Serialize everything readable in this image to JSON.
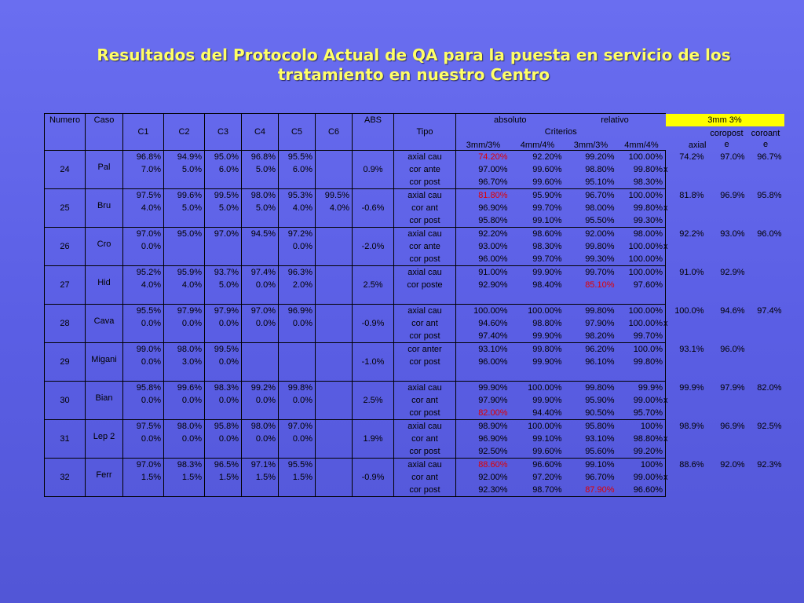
{
  "title": {
    "line1": "Resultados del Protocolo Actual de QA para la puesta en servicio de los",
    "line2": "tratamiento en nuestro Centro"
  },
  "headers": {
    "numero": "Numero",
    "caso": "Caso",
    "c1": "C1",
    "c2": "C2",
    "c3": "C3",
    "c4": "C4",
    "c5": "C5",
    "c6": "C6",
    "abs": "ABS",
    "tipo": "Tipo",
    "absoluto": "absoluto",
    "relativo": "relativo",
    "mm3": "3mm 3%",
    "criterios": "Criterios",
    "abs_3mm": "3mm/3%",
    "abs_4mm": "4mm/4%",
    "rel_3mm": "3mm/3%",
    "rel_4mm": "4mm/4%",
    "axial": "axial",
    "coropost_1": "coropost",
    "coropost_2": "e",
    "coroant_1": "coroant",
    "coroant_2": "e"
  },
  "colors": {
    "background": "#6064e6",
    "title": "#ffff66",
    "highlight": "#ffff00",
    "warning": "#e00000"
  },
  "cases": [
    {
      "numero": "24",
      "caso": "Pal",
      "row1": [
        "96.8%",
        "94.9%",
        "95.0%",
        "96.8%",
        "95.5%",
        ""
      ],
      "row2": [
        "7.0%",
        "5.0%",
        "6.0%",
        "5.0%",
        "6.0%",
        ""
      ],
      "abs": "0.9%",
      "tipos": [
        {
          "t": "axial cau",
          "v": [
            "74.20%",
            "92.20%",
            "99.20%",
            "100.00%"
          ],
          "red": [
            0
          ],
          "x": false
        },
        {
          "t": "cor ante",
          "v": [
            "97.00%",
            "99.60%",
            "98.80%",
            "99.80%"
          ],
          "red": [],
          "x": true
        },
        {
          "t": "cor post",
          "v": [
            "96.70%",
            "99.60%",
            "95.10%",
            "98.30%"
          ],
          "red": [],
          "x": false
        }
      ],
      "mm3": [
        "74.2%",
        "97.0%",
        "96.7%"
      ]
    },
    {
      "numero": "25",
      "caso": "Bru",
      "row1": [
        "97.5%",
        "99.6%",
        "99.5%",
        "98.0%",
        "95.3%",
        "99.5%"
      ],
      "row2": [
        "4.0%",
        "5.0%",
        "5.0%",
        "5.0%",
        "4.0%",
        "4.0%"
      ],
      "abs": "-0.6%",
      "tipos": [
        {
          "t": "axial cau",
          "v": [
            "81.80%",
            "95.90%",
            "96.70%",
            "100.00%"
          ],
          "red": [
            0
          ],
          "x": false
        },
        {
          "t": "cor ant",
          "v": [
            "96.90%",
            "99.70%",
            "98.00%",
            "99.80%"
          ],
          "red": [],
          "x": true
        },
        {
          "t": "cor post",
          "v": [
            "95.80%",
            "99.10%",
            "95.50%",
            "99.30%"
          ],
          "red": [],
          "x": false
        }
      ],
      "mm3": [
        "81.8%",
        "96.9%",
        "95.8%"
      ]
    },
    {
      "numero": "26",
      "caso": "Cro",
      "row1": [
        "97.0%",
        "95.0%",
        "97.0%",
        "94.5%",
        "97.2%",
        ""
      ],
      "row2": [
        "0.0%",
        "",
        "",
        "",
        "0.0%",
        ""
      ],
      "abs": "-2.0%",
      "tipos": [
        {
          "t": "axial cau",
          "v": [
            "92.20%",
            "98.60%",
            "92.00%",
            "98.00%"
          ],
          "red": [],
          "x": false
        },
        {
          "t": "cor ante",
          "v": [
            "93.00%",
            "98.30%",
            "99.80%",
            "100.00%"
          ],
          "red": [],
          "x": true
        },
        {
          "t": "cor post",
          "v": [
            "96.00%",
            "99.70%",
            "99.30%",
            "100.00%"
          ],
          "red": [],
          "x": false
        }
      ],
      "mm3": [
        "92.2%",
        "93.0%",
        "96.0%"
      ]
    },
    {
      "numero": "27",
      "caso": "Hid",
      "row1": [
        "95.2%",
        "95.9%",
        "93.7%",
        "97.4%",
        "96.3%",
        ""
      ],
      "row2": [
        "4.0%",
        "4.0%",
        "5.0%",
        "0.0%",
        "2.0%",
        ""
      ],
      "abs": "2.5%",
      "tipos": [
        {
          "t": "axial cau",
          "v": [
            "91.00%",
            "99.90%",
            "99.70%",
            "100.00%"
          ],
          "red": [],
          "x": false
        },
        {
          "t": "cor poste",
          "v": [
            "92.90%",
            "98.40%",
            "85.10%",
            "97.60%"
          ],
          "red": [
            2
          ],
          "x": false
        },
        {
          "t": "",
          "v": [
            "",
            "",
            "",
            ""
          ],
          "red": [],
          "x": false
        }
      ],
      "mm3": [
        "91.0%",
        "92.9%",
        ""
      ]
    },
    {
      "numero": "28",
      "caso": "Cava",
      "row1": [
        "95.5%",
        "97.9%",
        "97.9%",
        "97.0%",
        "96.9%",
        ""
      ],
      "row2": [
        "0.0%",
        "0.0%",
        "0.0%",
        "0.0%",
        "0.0%",
        ""
      ],
      "abs": "-0.9%",
      "tipos": [
        {
          "t": "axial cau",
          "v": [
            "100.00%",
            "100.00%",
            "99.80%",
            "100.00%"
          ],
          "red": [],
          "x": false
        },
        {
          "t": "cor ant",
          "v": [
            "94.60%",
            "98.80%",
            "97.90%",
            "100.00%"
          ],
          "red": [],
          "x": true
        },
        {
          "t": "cor post",
          "v": [
            "97.40%",
            "99.90%",
            "98.20%",
            "99.70%"
          ],
          "red": [],
          "x": false
        }
      ],
      "mm3": [
        "100.0%",
        "94.6%",
        "97.4%"
      ]
    },
    {
      "numero": "29",
      "caso": "Migani",
      "row1": [
        "99.0%",
        "98.0%",
        "99.5%",
        "",
        "",
        ""
      ],
      "row2": [
        "0.0%",
        "3.0%",
        "0.0%",
        "",
        "",
        ""
      ],
      "abs": "-1.0%",
      "tipos": [
        {
          "t": "cor anter",
          "v": [
            "93.10%",
            "99.80%",
            "96.20%",
            "100.0%"
          ],
          "red": [],
          "x": false
        },
        {
          "t": "cor post",
          "v": [
            "96.00%",
            "99.90%",
            "96.10%",
            "99.80%"
          ],
          "red": [],
          "x": false
        },
        {
          "t": "",
          "v": [
            "",
            "",
            "",
            ""
          ],
          "red": [],
          "x": false
        }
      ],
      "mm3": [
        "93.1%",
        "96.0%",
        ""
      ]
    },
    {
      "numero": "30",
      "caso": "Bian",
      "row1": [
        "95.8%",
        "99.6%",
        "98.3%",
        "99.2%",
        "99.8%",
        ""
      ],
      "row2": [
        "0.0%",
        "0.0%",
        "0.0%",
        "0.0%",
        "0.0%",
        ""
      ],
      "abs": "2.5%",
      "tipos": [
        {
          "t": "axial cau",
          "v": [
            "99.90%",
            "100.00%",
            "99.80%",
            "99.9%"
          ],
          "red": [],
          "x": false
        },
        {
          "t": "cor ant",
          "v": [
            "97.90%",
            "99.90%",
            "95.90%",
            "99.00%"
          ],
          "red": [],
          "x": true
        },
        {
          "t": "cor post",
          "v": [
            "82.00%",
            "94.40%",
            "90.50%",
            "95.70%"
          ],
          "red": [
            0
          ],
          "x": false
        }
      ],
      "mm3": [
        "99.9%",
        "97.9%",
        "82.0%"
      ]
    },
    {
      "numero": "31",
      "caso": "Lep 2",
      "row1": [
        "97.5%",
        "98.0%",
        "95.8%",
        "98.0%",
        "97.0%",
        ""
      ],
      "row2": [
        "0.0%",
        "0.0%",
        "0.0%",
        "0.0%",
        "0.0%",
        ""
      ],
      "abs": "1.9%",
      "tipos": [
        {
          "t": "axial cau",
          "v": [
            "98.90%",
            "100.00%",
            "95.80%",
            "100%"
          ],
          "red": [],
          "x": false
        },
        {
          "t": "cor ant",
          "v": [
            "96.90%",
            "99.10%",
            "93.10%",
            "98.80%"
          ],
          "red": [],
          "x": true
        },
        {
          "t": "cor post",
          "v": [
            "92.50%",
            "99.60%",
            "95.60%",
            "99.20%"
          ],
          "red": [],
          "x": false
        }
      ],
      "mm3": [
        "98.9%",
        "96.9%",
        "92.5%"
      ]
    },
    {
      "numero": "32",
      "caso": "Ferr",
      "row1": [
        "97.0%",
        "98.3%",
        "96.5%",
        "97.1%",
        "95.5%",
        ""
      ],
      "row2": [
        "1.5%",
        "1.5%",
        "1.5%",
        "1.5%",
        "1.5%",
        ""
      ],
      "abs": "-0.9%",
      "tipos": [
        {
          "t": "axial cau",
          "v": [
            "88.60%",
            "96.60%",
            "99.10%",
            "100%"
          ],
          "red": [
            0
          ],
          "x": false
        },
        {
          "t": "cor ant",
          "v": [
            "92.00%",
            "97.20%",
            "96.70%",
            "99.00%"
          ],
          "red": [],
          "x": true
        },
        {
          "t": "cor post",
          "v": [
            "92.30%",
            "98.70%",
            "87.90%",
            "96.60%"
          ],
          "red": [
            2
          ],
          "x": false
        }
      ],
      "mm3": [
        "88.6%",
        "92.0%",
        "92.3%"
      ]
    }
  ],
  "x_mark": "x"
}
